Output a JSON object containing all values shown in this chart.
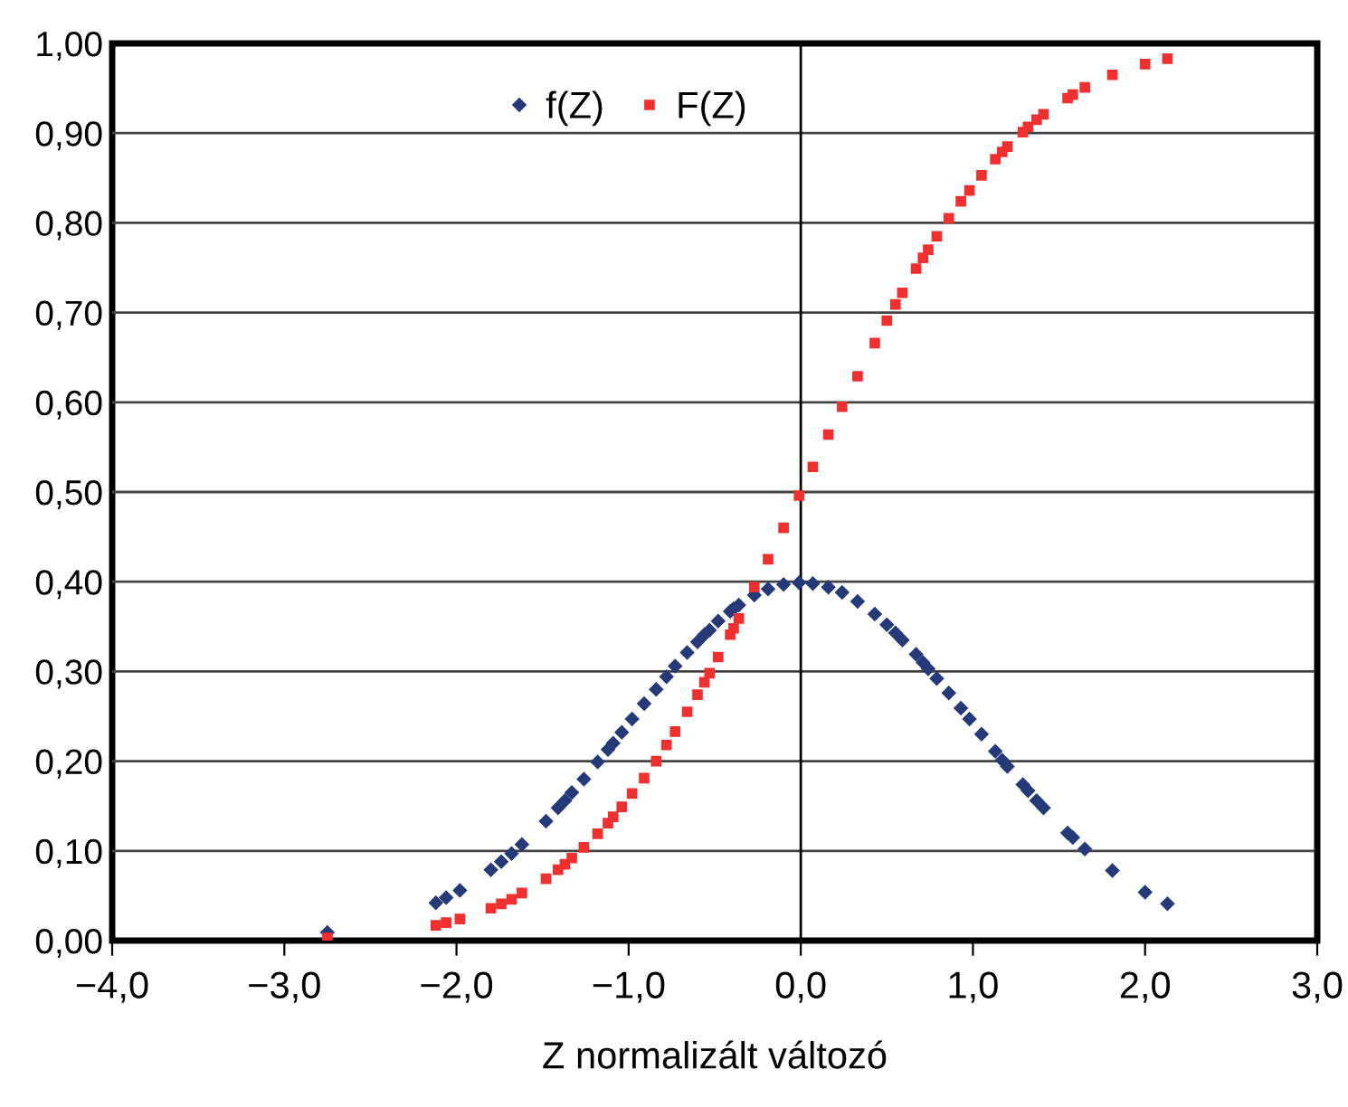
{
  "chart_data": {
    "type": "scatter",
    "xlabel": "Z normalizált változó",
    "x": [
      -2.75,
      -2.12,
      -2.06,
      -1.98,
      -1.8,
      -1.74,
      -1.68,
      -1.62,
      -1.48,
      -1.41,
      -1.37,
      -1.33,
      -1.26,
      -1.18,
      -1.12,
      -1.09,
      -1.04,
      -0.98,
      -0.91,
      -0.84,
      -0.78,
      -0.73,
      -0.66,
      -0.6,
      -0.56,
      -0.53,
      -0.48,
      -0.41,
      -0.39,
      -0.36,
      -0.27,
      -0.19,
      -0.1,
      -0.01,
      0.07,
      0.16,
      0.24,
      0.33,
      0.43,
      0.5,
      0.55,
      0.59,
      0.67,
      0.71,
      0.74,
      0.79,
      0.86,
      0.93,
      0.98,
      1.05,
      1.13,
      1.17,
      1.2,
      1.29,
      1.32,
      1.37,
      1.41,
      1.55,
      1.58,
      1.65,
      1.81,
      2.0,
      2.13
    ],
    "series": [
      {
        "name": "f(Z)",
        "color": "#263a78",
        "marker": "diamond",
        "values": [
          0.009,
          0.042,
          0.048,
          0.056,
          0.079,
          0.088,
          0.097,
          0.107,
          0.133,
          0.148,
          0.156,
          0.165,
          0.18,
          0.199,
          0.213,
          0.22,
          0.232,
          0.247,
          0.264,
          0.28,
          0.294,
          0.306,
          0.321,
          0.333,
          0.341,
          0.346,
          0.356,
          0.367,
          0.37,
          0.374,
          0.385,
          0.392,
          0.397,
          0.399,
          0.398,
          0.394,
          0.388,
          0.378,
          0.364,
          0.352,
          0.343,
          0.335,
          0.319,
          0.31,
          0.303,
          0.292,
          0.276,
          0.259,
          0.247,
          0.23,
          0.211,
          0.201,
          0.194,
          0.174,
          0.167,
          0.156,
          0.148,
          0.12,
          0.115,
          0.102,
          0.078,
          0.054,
          0.041
        ]
      },
      {
        "name": "F(Z)",
        "color": "#f03030",
        "marker": "square",
        "values": [
          0.003,
          0.017,
          0.02,
          0.024,
          0.036,
          0.041,
          0.046,
          0.053,
          0.069,
          0.079,
          0.085,
          0.092,
          0.104,
          0.119,
          0.131,
          0.138,
          0.149,
          0.164,
          0.181,
          0.2,
          0.218,
          0.233,
          0.255,
          0.274,
          0.288,
          0.298,
          0.316,
          0.341,
          0.348,
          0.359,
          0.394,
          0.425,
          0.46,
          0.496,
          0.528,
          0.564,
          0.595,
          0.629,
          0.666,
          0.691,
          0.709,
          0.722,
          0.749,
          0.761,
          0.77,
          0.785,
          0.805,
          0.824,
          0.836,
          0.853,
          0.871,
          0.879,
          0.885,
          0.901,
          0.907,
          0.915,
          0.921,
          0.939,
          0.943,
          0.951,
          0.965,
          0.977,
          0.983
        ]
      }
    ],
    "xlim": [
      -4,
      3
    ],
    "xticks": [
      {
        "value": -4,
        "label": "−4,0"
      },
      {
        "value": -3,
        "label": "−3,0"
      },
      {
        "value": -2,
        "label": "−2,0"
      },
      {
        "value": -1,
        "label": "−1,0"
      },
      {
        "value": 0,
        "label": "0,0"
      },
      {
        "value": 1,
        "label": "1,0"
      },
      {
        "value": 2,
        "label": "2,0"
      },
      {
        "value": 3,
        "label": "3,0"
      }
    ],
    "ylim": [
      0,
      1
    ],
    "yticks": [
      {
        "value": 0,
        "label": "0,00"
      },
      {
        "value": 0.1,
        "label": "0,10"
      },
      {
        "value": 0.2,
        "label": "0,20"
      },
      {
        "value": 0.3,
        "label": "0,30"
      },
      {
        "value": 0.4,
        "label": "0,40"
      },
      {
        "value": 0.5,
        "label": "0,50"
      },
      {
        "value": 0.6,
        "label": "0,60"
      },
      {
        "value": 0.7,
        "label": "0,70"
      },
      {
        "value": 0.8,
        "label": "0,80"
      },
      {
        "value": 0.9,
        "label": "0,90"
      },
      {
        "value": 1,
        "label": "1,00"
      }
    ],
    "grid": "y",
    "legend": "top"
  }
}
